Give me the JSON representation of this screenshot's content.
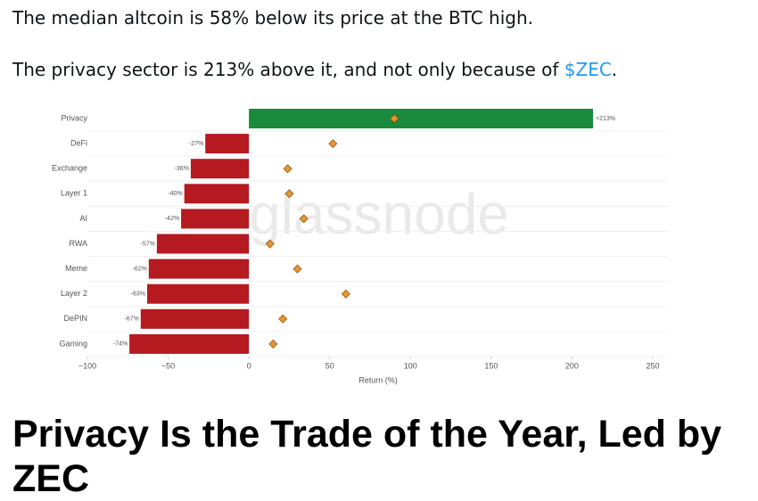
{
  "post": {
    "line1": "The median altcoin is 58% below its price at the BTC high.",
    "line2": [
      "The privacy sector is 213% above it, and not only because of ",
      "$ZEC",
      "."
    ],
    "headline": [
      "Privacy Is the Trade of the Year, Led by",
      "ZEC"
    ]
  },
  "chart_data": {
    "type": "bar",
    "orientation": "horizontal",
    "watermark": "glassnode",
    "categories": [
      "Privacy",
      "DeFi",
      "Exchange",
      "Layer 1",
      "AI",
      "RWA",
      "Meme",
      "Layer 2",
      "DePIN",
      "Gaming"
    ],
    "series": [
      {
        "values": [
          213,
          -27,
          -36,
          -40,
          -42,
          -57,
          -62,
          -63,
          -67,
          -74
        ],
        "value_labels": [
          "+213%",
          "-27%",
          "-36%",
          "-40%",
          "-42%",
          "-57%",
          "-62%",
          "-63%",
          "-67%",
          "-74%"
        ],
        "colors": [
          "#1a8a3c",
          "#b51a20",
          "#b51a20",
          "#b51a20",
          "#b51a20",
          "#b51a20",
          "#b51a20",
          "#b51a20",
          "#b51a20",
          "#b51a20"
        ]
      },
      {
        "marker": "diamond",
        "color": "#e8952e",
        "values": [
          90,
          52,
          24,
          25,
          34,
          13,
          30,
          60,
          21,
          15
        ]
      }
    ],
    "x_label": "Return (%)",
    "xlim": [
      -100,
      250
    ],
    "xticks": [
      {
        "value": -100,
        "label": "−100"
      },
      {
        "value": -50,
        "label": "−50"
      },
      0,
      50,
      100,
      150,
      200,
      250
    ]
  }
}
